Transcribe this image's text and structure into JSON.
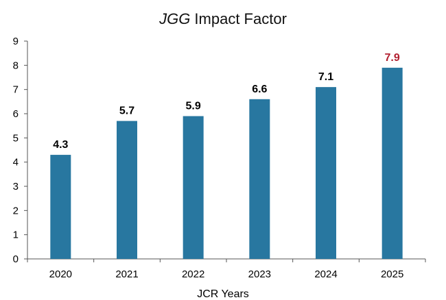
{
  "chart_data": {
    "type": "bar",
    "title_em": "JGG",
    "title_rest": " Impact Factor",
    "xlabel": "JCR Years",
    "ylabel": "",
    "categories": [
      "2020",
      "2021",
      "2022",
      "2023",
      "2024",
      "2025"
    ],
    "values": [
      4.3,
      5.7,
      5.9,
      6.6,
      7.1,
      7.9
    ],
    "data_labels": [
      "4.3",
      "5.7",
      "5.9",
      "6.6",
      "7.1",
      "7.9"
    ],
    "ylim": [
      0,
      9
    ],
    "yticks": [
      "0",
      "1",
      "2",
      "3",
      "4",
      "5",
      "6",
      "7",
      "8",
      "9"
    ],
    "grid": false,
    "legend": "none",
    "colors": {
      "bar": "#2877a0",
      "label": "#000000",
      "highlight_label": "#b22030"
    },
    "highlight_index": 5
  }
}
